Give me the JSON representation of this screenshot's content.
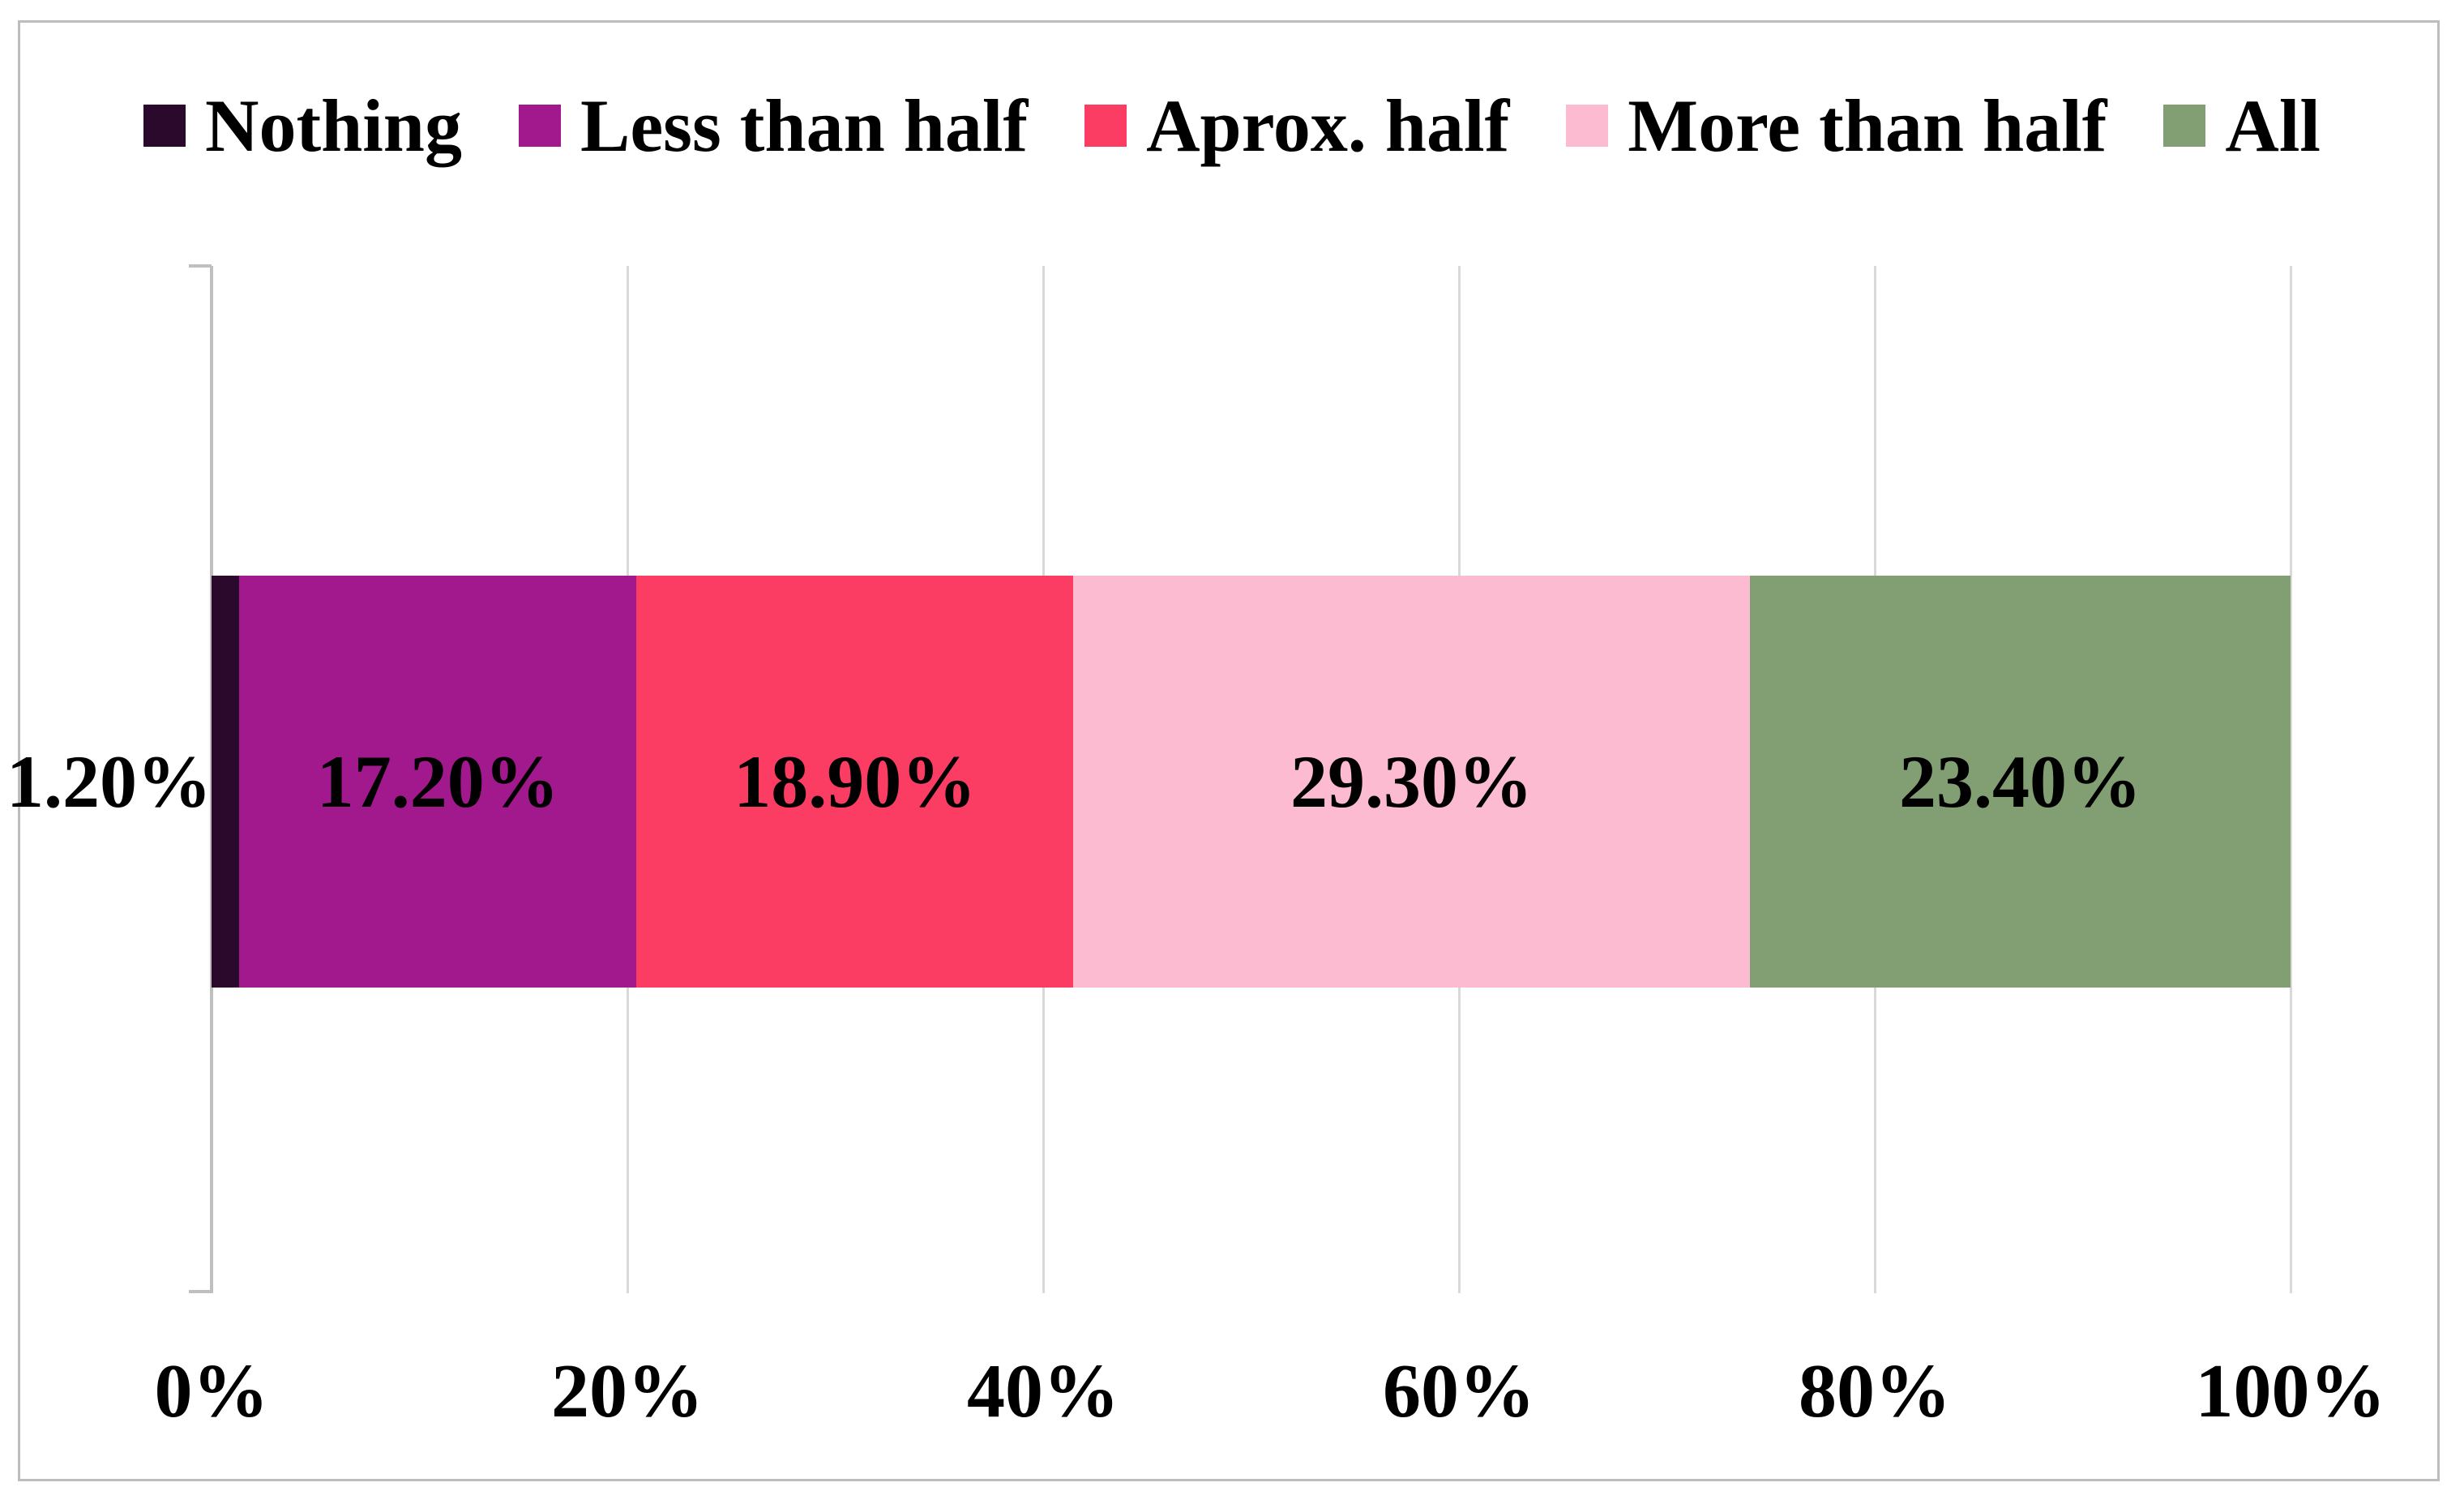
{
  "chart_data": {
    "type": "bar",
    "subtype": "100-percent-stacked-horizontal",
    "title": "",
    "xlabel": "",
    "ylabel": "",
    "categories": [
      ""
    ],
    "series": [
      {
        "name": "Nothing",
        "values": [
          1.2
        ],
        "data_label": "1.20%",
        "color": "#2b092c"
      },
      {
        "name": "Less than half",
        "values": [
          17.2
        ],
        "data_label": "17.20%",
        "color": "#a1198c"
      },
      {
        "name": "Aprox. half",
        "values": [
          18.9
        ],
        "data_label": "18.90%",
        "color": "#fb3d63"
      },
      {
        "name": "More than half",
        "values": [
          29.3
        ],
        "data_label": "29.30%",
        "color": "#fdbbd1"
      },
      {
        "name": "All",
        "values": [
          23.4
        ],
        "data_label": "23.40%",
        "color": "#829f73"
      }
    ],
    "x_axis": {
      "tick_labels": [
        "0%",
        "20%",
        "40%",
        "60%",
        "80%",
        "100%"
      ],
      "tick_values": [
        0,
        20,
        40,
        60,
        80,
        100
      ],
      "range": [
        0,
        100
      ]
    },
    "legend_position": "top",
    "grid": "vertical-major"
  },
  "legend": {
    "items": [
      {
        "label": "Nothing",
        "color": "#2b092c"
      },
      {
        "label": "Less than half",
        "color": "#a1198c"
      },
      {
        "label": "Aprox. half",
        "color": "#fb3d63"
      },
      {
        "label": "More than half",
        "color": "#fdbbd1"
      },
      {
        "label": "All",
        "color": "#829f73"
      }
    ]
  },
  "colors": {
    "background": "#ffffff",
    "frame_border": "#bdbdbd",
    "gridline": "#d9d9d9",
    "axis_line": "#bfbfbf",
    "label_text": "#000000"
  }
}
